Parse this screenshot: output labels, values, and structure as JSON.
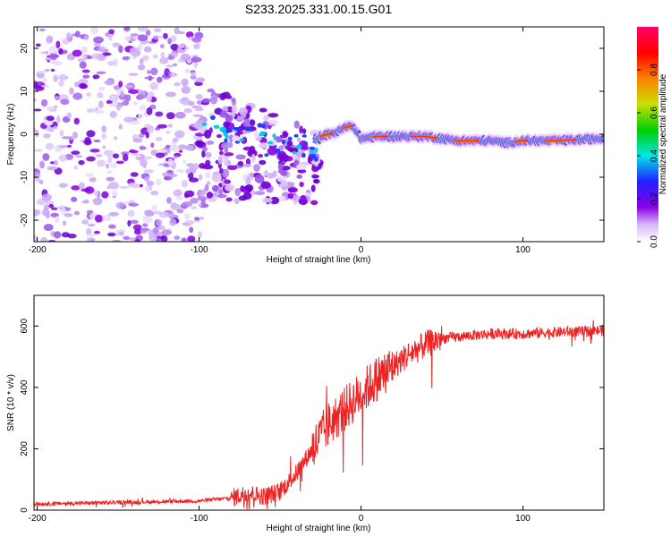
{
  "title": "S233.2025.331.00.15.G01",
  "chart_data": [
    {
      "type": "heatmap",
      "name": "spectrogram",
      "xlabel": "Height of straight line (km)",
      "ylabel": "Frequency (Hz)",
      "xlim": [
        -202,
        150
      ],
      "ylim": [
        -25,
        25
      ],
      "xticks": [
        -200,
        -100,
        0,
        100
      ],
      "yticks": [
        -20,
        -10,
        0,
        10,
        20
      ],
      "xtick_labels": [
        "-200",
        "-100",
        "0",
        "100"
      ],
      "ytick_labels": [
        "-20",
        "-10",
        "0",
        "10",
        "20"
      ],
      "colorbar": {
        "label": "Normalized spectral amplitude",
        "range": [
          0,
          1
        ],
        "ticks": [
          0.0,
          0.2,
          0.4,
          0.6,
          0.8
        ],
        "tick_labels": [
          "0.0",
          "0.2",
          "0.4",
          "0.6",
          "0.8"
        ],
        "colors": [
          "#ffffff",
          "#c9a6f5",
          "#8a00e6",
          "#2020ff",
          "#00e5e5",
          "#00d000",
          "#c8e000",
          "#ff8000",
          "#ff0000",
          "#ff0066"
        ]
      },
      "ridge": {
        "description_points_x": [
          -25,
          -15,
          -10,
          -5,
          0,
          10,
          20,
          40,
          60,
          80,
          90,
          100,
          120,
          150
        ],
        "description_points_y": [
          -0.5,
          0.5,
          1.5,
          2.0,
          -1.0,
          -0.5,
          -0.5,
          -0.5,
          -1.5,
          -1.5,
          -2.0,
          -1.5,
          -1.5,
          -1.0
        ]
      }
    },
    {
      "type": "line",
      "name": "snr",
      "xlabel": "Height of straight line (km)",
      "ylabel": "SNR (10 * v/v)",
      "xlim": [
        -202,
        150
      ],
      "ylim": [
        0,
        700
      ],
      "xticks": [
        -200,
        -100,
        0,
        100
      ],
      "yticks": [
        0,
        200,
        400,
        600
      ],
      "xtick_labels": [
        "-200",
        "-100",
        "0",
        "100"
      ],
      "ytick_labels": [
        "0",
        "200",
        "400",
        "600"
      ],
      "series": [
        {
          "name": "SNR",
          "color": "#ee2222",
          "trend_x": [
            -202,
            -150,
            -100,
            -80,
            -70,
            -60,
            -50,
            -40,
            -30,
            -20,
            -10,
            0,
            10,
            20,
            30,
            40,
            50,
            60,
            80,
            100,
            120,
            150
          ],
          "trend_y": [
            20,
            25,
            30,
            40,
            55,
            45,
            60,
            120,
            200,
            280,
            330,
            380,
            430,
            470,
            510,
            540,
            560,
            565,
            575,
            575,
            580,
            585
          ]
        }
      ]
    }
  ]
}
